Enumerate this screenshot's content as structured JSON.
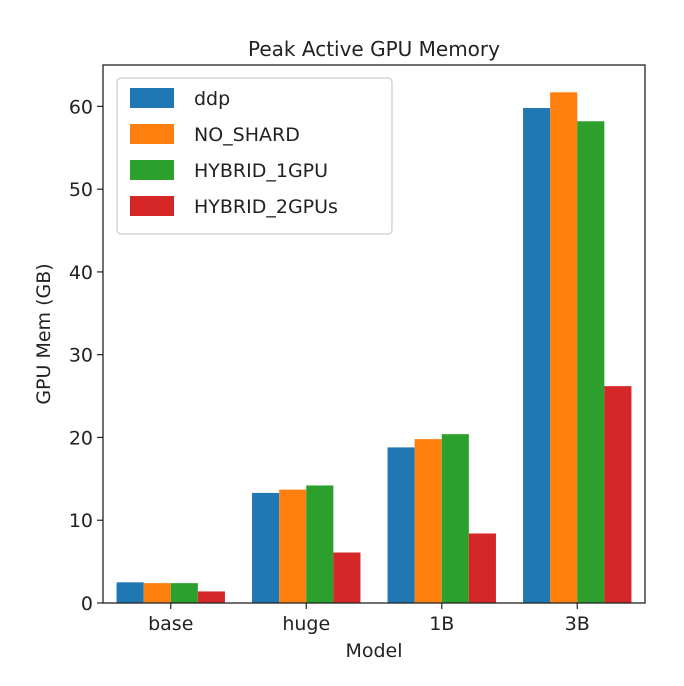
{
  "chart_data": {
    "type": "bar",
    "title": "Peak Active GPU Memory",
    "xlabel": "Model",
    "ylabel": "GPU Mem (GB)",
    "categories": [
      "base",
      "huge",
      "1B",
      "3B"
    ],
    "ylim": [
      0,
      65
    ],
    "yticks": [
      "0",
      "10",
      "20",
      "30",
      "40",
      "50",
      "60"
    ],
    "grid": false,
    "legend_position": "top-left",
    "series": [
      {
        "name": "ddp",
        "color": "#1f77b4",
        "values": [
          2.5,
          13.3,
          18.8,
          59.8
        ]
      },
      {
        "name": "NO_SHARD",
        "color": "#ff7f0e",
        "values": [
          2.4,
          13.7,
          19.8,
          61.7
        ]
      },
      {
        "name": "HYBRID_1GPU",
        "color": "#2ca02c",
        "values": [
          2.4,
          14.2,
          20.4,
          58.2
        ]
      },
      {
        "name": "HYBRID_2GPUs",
        "color": "#d62728",
        "values": [
          1.4,
          6.1,
          8.4,
          26.2
        ]
      }
    ]
  }
}
